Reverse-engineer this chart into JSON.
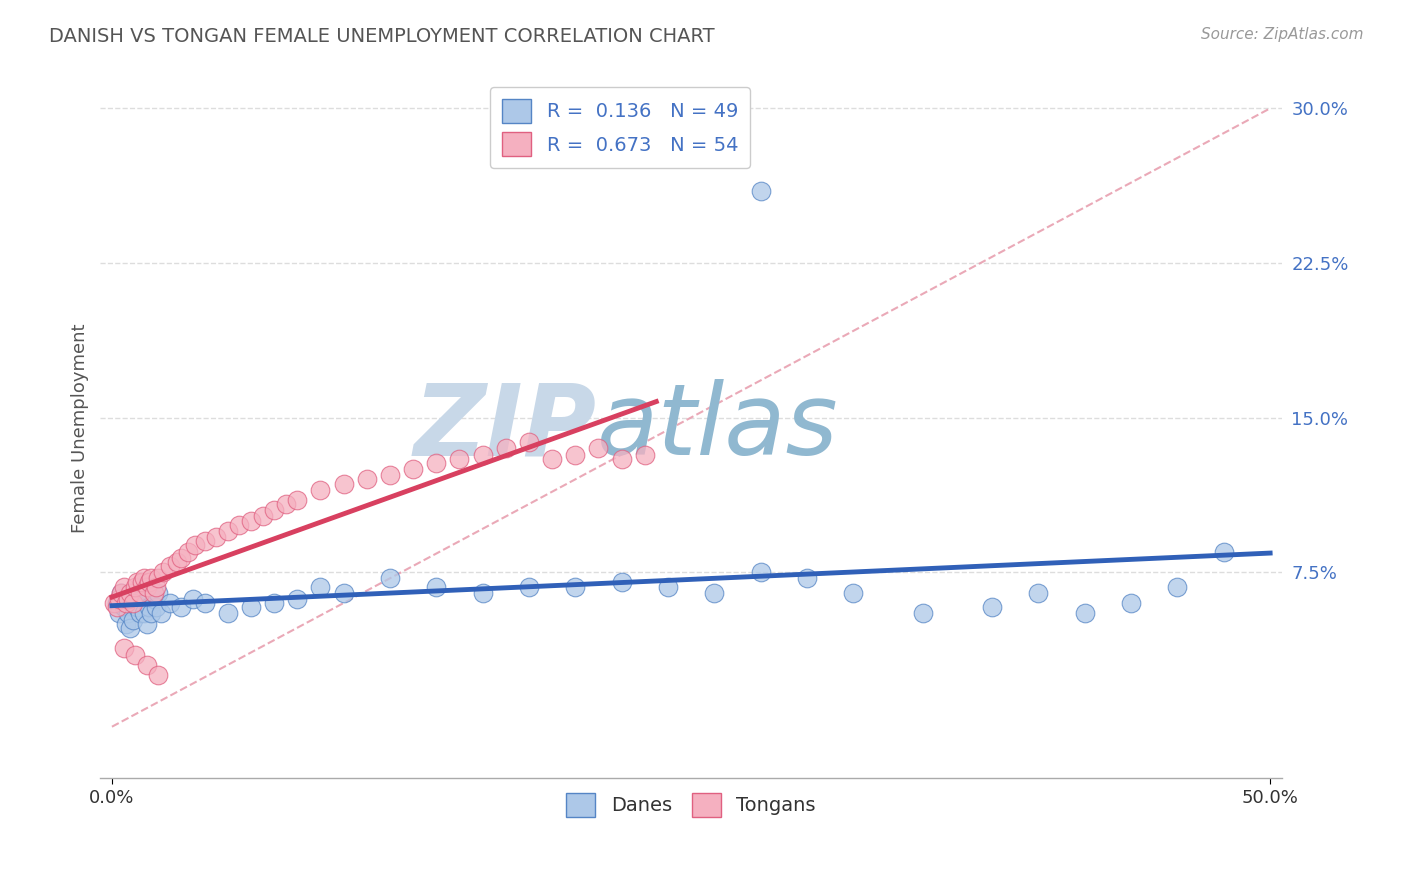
{
  "title": "DANISH VS TONGAN FEMALE UNEMPLOYMENT CORRELATION CHART",
  "source_text": "Source: ZipAtlas.com",
  "ylabel": "Female Unemployment",
  "xlim": [
    -0.005,
    0.505
  ],
  "ylim": [
    -0.025,
    0.315
  ],
  "background_color": "#ffffff",
  "grid_color": "#dddddd",
  "grid_style": "--",
  "watermark_zip": "ZIP",
  "watermark_atlas": "atlas",
  "watermark_color_zip": "#c8d8e8",
  "watermark_color_atlas": "#90b8d0",
  "danes_color": "#adc8e8",
  "tongans_color": "#f5b0c0",
  "danes_edge_color": "#5585c5",
  "tongans_edge_color": "#e06080",
  "danes_line_color": "#3060b8",
  "tongans_line_color": "#d84060",
  "dashed_line_color": "#e8a0b0",
  "danes_R": "0.136",
  "danes_N": "49",
  "tongans_R": "0.673",
  "tongans_N": "54",
  "legend_text_color": "#4472c4",
  "ytick_values": [
    0.075,
    0.15,
    0.225,
    0.3
  ],
  "ytick_labels": [
    "7.5%",
    "15.0%",
    "22.5%",
    "30.0%"
  ],
  "danes_x": [
    0.002,
    0.003,
    0.004,
    0.005,
    0.006,
    0.007,
    0.008,
    0.009,
    0.01,
    0.011,
    0.012,
    0.013,
    0.014,
    0.015,
    0.016,
    0.017,
    0.018,
    0.019,
    0.02,
    0.021,
    0.025,
    0.03,
    0.035,
    0.04,
    0.05,
    0.06,
    0.07,
    0.08,
    0.09,
    0.1,
    0.12,
    0.14,
    0.16,
    0.18,
    0.2,
    0.22,
    0.24,
    0.26,
    0.28,
    0.3,
    0.32,
    0.35,
    0.38,
    0.4,
    0.42,
    0.44,
    0.46,
    0.48,
    0.28
  ],
  "danes_y": [
    0.06,
    0.055,
    0.065,
    0.058,
    0.05,
    0.055,
    0.048,
    0.052,
    0.06,
    0.058,
    0.055,
    0.062,
    0.055,
    0.05,
    0.058,
    0.055,
    0.062,
    0.058,
    0.065,
    0.055,
    0.06,
    0.058,
    0.062,
    0.06,
    0.055,
    0.058,
    0.06,
    0.062,
    0.068,
    0.065,
    0.072,
    0.068,
    0.065,
    0.068,
    0.068,
    0.07,
    0.068,
    0.065,
    0.075,
    0.072,
    0.065,
    0.055,
    0.058,
    0.065,
    0.055,
    0.06,
    0.068,
    0.085,
    0.26
  ],
  "tongans_x": [
    0.001,
    0.002,
    0.003,
    0.004,
    0.005,
    0.006,
    0.007,
    0.008,
    0.009,
    0.01,
    0.011,
    0.012,
    0.013,
    0.014,
    0.015,
    0.016,
    0.017,
    0.018,
    0.019,
    0.02,
    0.022,
    0.025,
    0.028,
    0.03,
    0.033,
    0.036,
    0.04,
    0.045,
    0.05,
    0.055,
    0.06,
    0.065,
    0.07,
    0.075,
    0.08,
    0.09,
    0.1,
    0.11,
    0.12,
    0.13,
    0.14,
    0.15,
    0.16,
    0.17,
    0.18,
    0.19,
    0.2,
    0.21,
    0.22,
    0.23,
    0.005,
    0.01,
    0.015,
    0.02
  ],
  "tongans_y": [
    0.06,
    0.058,
    0.062,
    0.065,
    0.068,
    0.06,
    0.062,
    0.065,
    0.06,
    0.068,
    0.07,
    0.065,
    0.07,
    0.072,
    0.068,
    0.07,
    0.072,
    0.065,
    0.068,
    0.072,
    0.075,
    0.078,
    0.08,
    0.082,
    0.085,
    0.088,
    0.09,
    0.092,
    0.095,
    0.098,
    0.1,
    0.102,
    0.105,
    0.108,
    0.11,
    0.115,
    0.118,
    0.12,
    0.122,
    0.125,
    0.128,
    0.13,
    0.132,
    0.135,
    0.138,
    0.13,
    0.132,
    0.135,
    0.13,
    0.132,
    0.038,
    0.035,
    0.03,
    0.025
  ]
}
